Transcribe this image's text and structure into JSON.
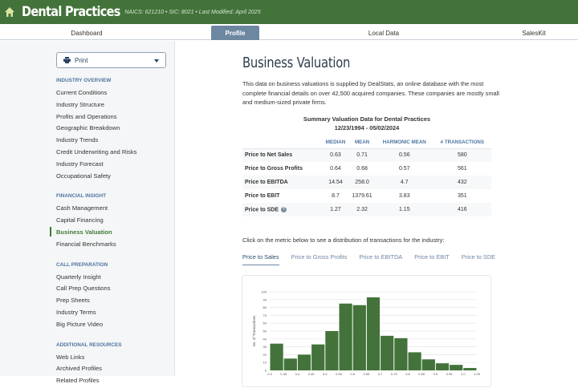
{
  "header": {
    "title": "Dental Practices",
    "meta": "NAICS: 621210  •  SIC: 8021  •  Last Modified: April 2025",
    "icon": "home-icon"
  },
  "nav": {
    "tabs": [
      {
        "label": "Dashboard"
      },
      {
        "label": "Profile",
        "active": true
      },
      {
        "label": "Local Data"
      },
      {
        "label": "SalesKit"
      }
    ]
  },
  "sidebar": {
    "print_label": "Print",
    "sections": [
      {
        "title": "INDUSTRY OVERVIEW",
        "items": [
          "Current Conditions",
          "Industry Structure",
          "Profits and Operations",
          "Geographic Breakdown",
          "Industry Trends",
          "Credit Underwriting and Risks",
          "Industry Forecast",
          "Occupational Safety"
        ]
      },
      {
        "title": "FINANCIAL INSIGHT",
        "items": [
          "Cash Management",
          "Capital Financing",
          "Business Valuation",
          "Financial Benchmarks"
        ]
      },
      {
        "title": "CALL PREPARATION",
        "items": [
          "Quarterly Insight",
          "Call Prep Questions",
          "Prep Sheets",
          "Industry Terms",
          "Big Picture Video"
        ]
      },
      {
        "title": "ADDITIONAL RESOURCES",
        "items": [
          "Web Links",
          "Archived Profiles",
          "Related Profiles"
        ]
      }
    ],
    "active_item": "Business Valuation"
  },
  "main": {
    "title": "Business Valuation",
    "intro": "This data on business valuations is supplied by DealStats, an online database with the most complete financial details on over 42,500 acquired companies. These companies are mostly small and medium-sized private firms.",
    "table_title": "Summary Valuation Data for Dental Practices",
    "table_dates": "12/23/1994 - 05/02/2024",
    "columns": [
      "",
      "MEDIAN",
      "MEAN",
      "HARMONIC MEAN",
      "# TRANSACTIONS"
    ],
    "rows": [
      [
        "Price to Net Sales",
        "0.63",
        "0.71",
        "0.56",
        "580"
      ],
      [
        "Price to Gross Profits",
        "0.64",
        "0.68",
        "0.57",
        "561"
      ],
      [
        "Price to EBITDA",
        "14.54",
        "258.0",
        "4.7",
        "432"
      ],
      [
        "Price to EBIT",
        "8.7",
        "1379.61",
        "3.83",
        "351"
      ],
      [
        "Price to SDE",
        "1.27",
        "2.32",
        "1.15",
        "416"
      ]
    ],
    "click_text": "Click on the metric below to see a distribution of transactions for the industry:",
    "metric_tabs": [
      "Price to Sales",
      "Price to Gross Profits",
      "Price to EBITDA",
      "Price to EBIT",
      "Price to SDE"
    ],
    "active_metric": "Price to Sales"
  },
  "colors": {
    "header": "#43733a",
    "bar": "#43733a",
    "accent": "#6d87a1"
  },
  "chart_data": {
    "type": "bar",
    "ylabel": "No. of Transactions",
    "ylim": [
      0,
      100
    ],
    "yticks": [
      0,
      10,
      20,
      30,
      40,
      50,
      60,
      70,
      80,
      90,
      100
    ],
    "xticks": [
      "0.3",
      "0.35",
      "0.4",
      "0.45",
      "0.5",
      "0.55",
      "0.6",
      "0.65",
      "0.7",
      "0.75",
      "0.8",
      "0.85",
      "0.9",
      "0.95",
      "1.0",
      "1.05"
    ],
    "bins": [
      [
        0.3,
        0.35
      ],
      [
        0.35,
        0.4
      ],
      [
        0.4,
        0.45
      ],
      [
        0.45,
        0.5
      ],
      [
        0.5,
        0.55
      ],
      [
        0.55,
        0.6
      ],
      [
        0.6,
        0.65
      ],
      [
        0.65,
        0.7
      ],
      [
        0.7,
        0.75
      ],
      [
        0.75,
        0.8
      ],
      [
        0.8,
        0.85
      ],
      [
        0.85,
        0.9
      ],
      [
        0.9,
        0.95
      ],
      [
        0.95,
        1.0
      ],
      [
        1.0,
        1.05
      ]
    ],
    "values": [
      34,
      15,
      20,
      33,
      50,
      85,
      83,
      93,
      44,
      41,
      23,
      14,
      9,
      7,
      3
    ],
    "grid": true
  }
}
